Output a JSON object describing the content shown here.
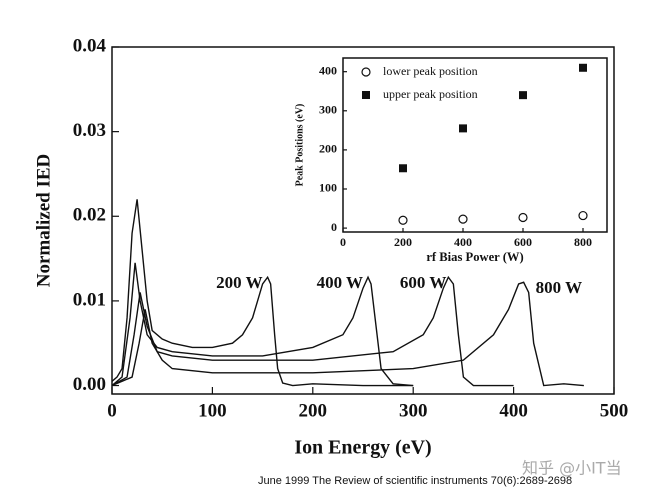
{
  "chart_data": [
    {
      "type": "line",
      "xlabel": "Ion Energy (eV)",
      "ylabel": "Normalized IED",
      "xlim": [
        0,
        500
      ],
      "xticks": [
        0,
        100,
        200,
        300,
        400,
        500
      ],
      "ylim": [
        -0.001,
        0.04
      ],
      "yticks": [
        {
          "value": 0,
          "label": "0.00"
        },
        {
          "value": 0.01,
          "label": "0.01"
        },
        {
          "value": 0.02,
          "label": "0.02"
        },
        {
          "value": 0.03,
          "label": "0.03"
        },
        {
          "value": 0.04,
          "label": "0.04"
        }
      ],
      "series": [
        {
          "name": "200 W",
          "color": "#111111",
          "x": [
            0,
            5,
            10,
            15,
            20,
            25,
            30,
            35,
            40,
            50,
            60,
            80,
            100,
            120,
            130,
            140,
            145,
            150,
            155,
            158,
            162,
            165,
            170,
            180,
            200,
            250,
            300
          ],
          "values": [
            0.0005,
            0.001,
            0.002,
            0.008,
            0.018,
            0.022,
            0.016,
            0.01,
            0.0065,
            0.0055,
            0.005,
            0.0045,
            0.0045,
            0.005,
            0.006,
            0.008,
            0.01,
            0.012,
            0.0128,
            0.012,
            0.006,
            0.002,
            0.0003,
            0,
            0.0002,
            0,
            0
          ]
        },
        {
          "name": "400 W",
          "color": "#111111",
          "x": [
            0,
            10,
            18,
            23,
            28,
            35,
            45,
            60,
            100,
            150,
            200,
            230,
            240,
            250,
            255,
            258,
            262,
            268,
            280,
            300
          ],
          "values": [
            0,
            0.001,
            0.008,
            0.0145,
            0.01,
            0.006,
            0.0045,
            0.004,
            0.0035,
            0.0035,
            0.0045,
            0.006,
            0.008,
            0.0115,
            0.0128,
            0.012,
            0.008,
            0.002,
            0.0002,
            0
          ]
        },
        {
          "name": "600 W",
          "color": "#111111",
          "x": [
            0,
            15,
            22,
            28,
            35,
            45,
            60,
            100,
            200,
            280,
            310,
            320,
            330,
            335,
            340,
            345,
            350,
            360,
            400
          ],
          "values": [
            0,
            0.001,
            0.006,
            0.011,
            0.007,
            0.004,
            0.0035,
            0.003,
            0.003,
            0.004,
            0.006,
            0.008,
            0.0115,
            0.0128,
            0.012,
            0.006,
            0.001,
            0,
            0
          ]
        },
        {
          "name": "800 W",
          "color": "#111111",
          "x": [
            0,
            20,
            27,
            33,
            40,
            50,
            60,
            100,
            200,
            300,
            350,
            380,
            395,
            405,
            410,
            415,
            420,
            430,
            450,
            470
          ],
          "values": [
            0,
            0.001,
            0.005,
            0.009,
            0.005,
            0.003,
            0.002,
            0.0015,
            0.0015,
            0.002,
            0.003,
            0.006,
            0.009,
            0.012,
            0.0122,
            0.011,
            0.005,
            0,
            0.0002,
            0
          ]
        }
      ]
    },
    {
      "type": "scatter",
      "xlabel": "rf Bias Power (W)",
      "ylabel": "Peak Positions (eV)",
      "xlim": [
        0,
        880
      ],
      "xticks": [
        0,
        200,
        400,
        600,
        800
      ],
      "ylim": [
        -10,
        435
      ],
      "yticks": [
        0,
        100,
        200,
        300,
        400
      ],
      "x": [
        200,
        400,
        600,
        800
      ],
      "series": [
        {
          "name": "lower peak position",
          "color": "#111111",
          "marker": "open-circle",
          "values": [
            20,
            23,
            27,
            32
          ]
        },
        {
          "name": "upper peak position",
          "color": "#111111",
          "marker": "filled-square",
          "values": [
            153,
            255,
            340,
            410
          ]
        }
      ]
    }
  ],
  "caption": "June 1999 The Review of scientific instruments 70(6):2689-2698",
  "watermark": "知乎 @小IT当"
}
